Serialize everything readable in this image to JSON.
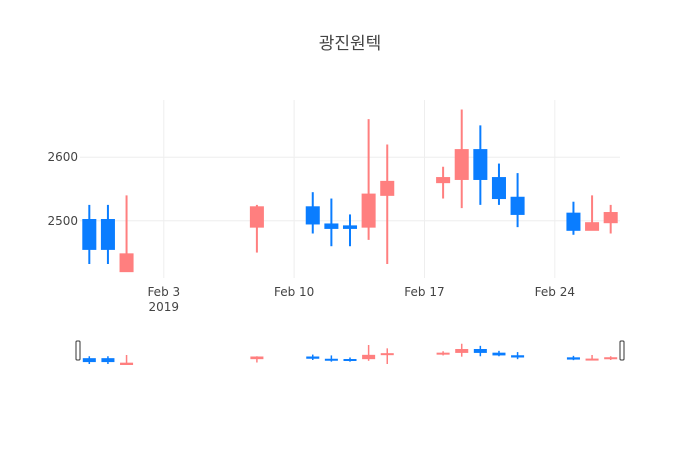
{
  "chart_data": {
    "type": "candlestick",
    "title": "광진원텍",
    "xlabel": "",
    "ylabel": "",
    "x_ticks": [
      {
        "date": "2019-02-03",
        "label": "Feb 3",
        "sublabel": "2019"
      },
      {
        "date": "2019-02-10",
        "label": "Feb 10",
        "sublabel": ""
      },
      {
        "date": "2019-02-17",
        "label": "Feb 17",
        "sublabel": ""
      },
      {
        "date": "2019-02-24",
        "label": "Feb 24",
        "sublabel": ""
      }
    ],
    "y_ticks": [
      2500,
      2600
    ],
    "ylim": [
      2410,
      2690
    ],
    "xlim": [
      "2019-01-29T12:00",
      "2019-02-27T12:00"
    ],
    "increasing_color": "#ff7f7f",
    "decreasing_color": "#0a7dff",
    "candles": [
      {
        "date": "2019-01-30",
        "open": 2502,
        "high": 2525,
        "low": 2432,
        "close": 2455
      },
      {
        "date": "2019-01-31",
        "open": 2502,
        "high": 2525,
        "low": 2432,
        "close": 2455
      },
      {
        "date": "2019-02-01",
        "open": 2420,
        "high": 2540,
        "low": 2420,
        "close": 2448
      },
      {
        "date": "2019-02-08",
        "open": 2490,
        "high": 2525,
        "low": 2450,
        "close": 2522
      },
      {
        "date": "2019-02-11",
        "open": 2522,
        "high": 2545,
        "low": 2480,
        "close": 2495
      },
      {
        "date": "2019-02-12",
        "open": 2495,
        "high": 2535,
        "low": 2460,
        "close": 2488
      },
      {
        "date": "2019-02-13",
        "open": 2492,
        "high": 2510,
        "low": 2460,
        "close": 2488
      },
      {
        "date": "2019-02-14",
        "open": 2490,
        "high": 2660,
        "low": 2470,
        "close": 2542
      },
      {
        "date": "2019-02-15",
        "open": 2540,
        "high": 2620,
        "low": 2432,
        "close": 2562
      },
      {
        "date": "2019-02-18",
        "open": 2560,
        "high": 2585,
        "low": 2535,
        "close": 2568
      },
      {
        "date": "2019-02-19",
        "open": 2565,
        "high": 2675,
        "low": 2520,
        "close": 2612
      },
      {
        "date": "2019-02-20",
        "open": 2612,
        "high": 2650,
        "low": 2525,
        "close": 2565
      },
      {
        "date": "2019-02-21",
        "open": 2568,
        "high": 2590,
        "low": 2525,
        "close": 2535
      },
      {
        "date": "2019-02-22",
        "open": 2537,
        "high": 2575,
        "low": 2490,
        "close": 2510
      },
      {
        "date": "2019-02-25",
        "open": 2512,
        "high": 2530,
        "low": 2478,
        "close": 2485
      },
      {
        "date": "2019-02-26",
        "open": 2485,
        "high": 2540,
        "low": 2485,
        "close": 2497
      },
      {
        "date": "2019-02-27",
        "open": 2497,
        "high": 2525,
        "low": 2480,
        "close": 2513
      }
    ],
    "range_slider": true,
    "grid": true,
    "legend": false
  }
}
